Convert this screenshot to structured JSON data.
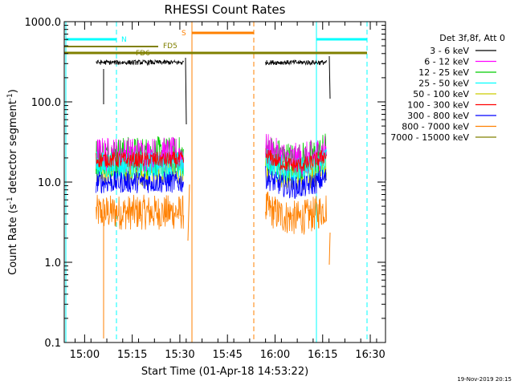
{
  "chart_data": {
    "type": "line",
    "title": "RHESSI Count Rates",
    "xlabel": "Start Time (01-Apr-18 14:53:22)",
    "ylabel_main": "Count Rate (s",
    "ylabel_sup1": "-1",
    "ylabel_mid": " detector segment",
    "ylabel_sup2": "-1",
    "ylabel_end": ")",
    "y_scale": "log",
    "ylim": [
      0.1,
      1000
    ],
    "xlim_minutes": [
      14.893,
      16.58
    ],
    "x_ticks": [
      {
        "label": "15:00",
        "value": 15.0
      },
      {
        "label": "15:15",
        "value": 15.25
      },
      {
        "label": "15:30",
        "value": 15.5
      },
      {
        "label": "15:45",
        "value": 15.75
      },
      {
        "label": "16:00",
        "value": 16.0
      },
      {
        "label": "16:15",
        "value": 16.25
      },
      {
        "label": "16:30",
        "value": 16.5
      }
    ],
    "y_ticks": [
      {
        "label": "0.1",
        "value": 0.1
      },
      {
        "label": "1.0",
        "value": 1
      },
      {
        "label": "10.0",
        "value": 10
      },
      {
        "label": "100.0",
        "value": 100
      },
      {
        "label": "1000.0",
        "value": 1000
      }
    ],
    "legend_title": "Det 3f,8f, Att 0",
    "legend_position": "right",
    "series": [
      {
        "name": "3 - 6 keV",
        "color": "#000000",
        "level": 310
      },
      {
        "name": "6 - 12 keV",
        "color": "#ff00ff",
        "level": 22
      },
      {
        "name": "12 - 25 keV",
        "color": "#00cc00",
        "level": 21
      },
      {
        "name": "25 - 50 keV",
        "color": "#00ffff",
        "level": 16
      },
      {
        "name": "50 - 100 keV",
        "color": "#cccc00",
        "level": 14
      },
      {
        "name": "100 - 300 keV",
        "color": "#ff0000",
        "level": 19
      },
      {
        "name": "300 - 800 keV",
        "color": "#0000ff",
        "level": 10
      },
      {
        "name": "800 - 7000 keV",
        "color": "#ff8000",
        "level": 4.2
      },
      {
        "name": "7000 - 15000 keV",
        "color": "#808000",
        "level": null
      }
    ],
    "data_intervals": [
      [
        15.06,
        15.52
      ],
      [
        15.95,
        16.27
      ]
    ],
    "annotations": [
      {
        "label": "N",
        "color": "#00ffff"
      },
      {
        "label": "S",
        "color": "#ff8000"
      },
      {
        "label": "FD5",
        "color": "#808000"
      },
      {
        "label": "FD6",
        "color": "#808000"
      }
    ]
  },
  "footer": {
    "timestamp": "19-Nov-2019 20:15"
  }
}
